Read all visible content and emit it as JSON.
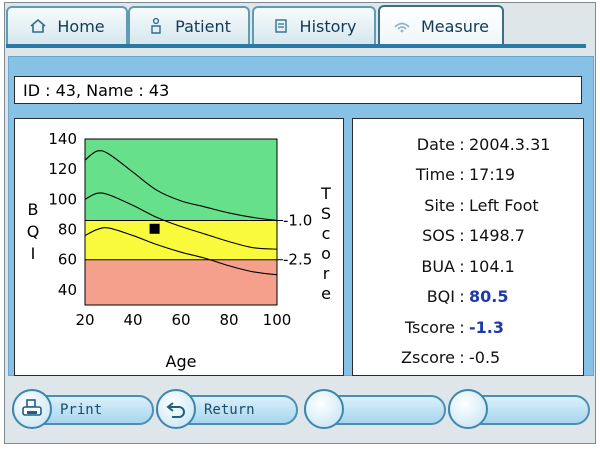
{
  "tabs": [
    {
      "label": "Home",
      "icon": "home-icon",
      "active": false
    },
    {
      "label": "Patient",
      "icon": "patient-icon",
      "active": false
    },
    {
      "label": "History",
      "icon": "history-icon",
      "active": false
    },
    {
      "label": "Measure",
      "icon": "wifi-icon",
      "active": true
    }
  ],
  "id_line": "ID : 43, Name : 43",
  "info": [
    {
      "label": "Date",
      "value": "2004.3.31",
      "highlight": false
    },
    {
      "label": "Time",
      "value": "17:19",
      "highlight": false
    },
    {
      "label": "Site",
      "value": "Left Foot",
      "highlight": false
    },
    {
      "label": "SOS",
      "value": "1498.7",
      "highlight": false
    },
    {
      "label": "BUA",
      "value": "104.1",
      "highlight": false
    },
    {
      "label": "BQI",
      "value": "80.5",
      "highlight": true
    },
    {
      "label": "Tscore",
      "value": "-1.3",
      "highlight": true
    },
    {
      "label": "Zscore",
      "value": "-0.5",
      "highlight": false
    }
  ],
  "buttons": [
    {
      "label": "Print",
      "icon": "printer-icon"
    },
    {
      "label": "Return",
      "icon": "return-arrow-icon"
    },
    {
      "label": "",
      "icon": ""
    },
    {
      "label": "",
      "icon": ""
    }
  ],
  "chart_data": {
    "type": "line",
    "xlabel": "Age",
    "ylabel": "BQI",
    "right_label": "TScore",
    "xlim": [
      20,
      100
    ],
    "ylim": [
      30,
      140
    ],
    "x_ticks": [
      20,
      40,
      60,
      80,
      100
    ],
    "y_ticks": [
      40,
      60,
      80,
      100,
      120,
      140
    ],
    "bands": [
      {
        "from": 86,
        "to": 140,
        "color": "#66e08a"
      },
      {
        "from": 60,
        "to": 86,
        "color": "#fafa3c"
      },
      {
        "from": 30,
        "to": 60,
        "color": "#f4a08c"
      }
    ],
    "threshold_labels": [
      {
        "value": 86,
        "label": "-1.0"
      },
      {
        "value": 60,
        "label": "-2.5"
      }
    ],
    "x": [
      20,
      25,
      30,
      40,
      50,
      60,
      70,
      80,
      90,
      100
    ],
    "series": [
      {
        "values": [
          126,
          132,
          130,
          118,
          106,
          99,
          95,
          91,
          88,
          86
        ]
      },
      {
        "values": [
          100,
          104,
          103,
          96,
          88,
          82,
          77,
          72,
          68,
          67
        ]
      },
      {
        "values": [
          76,
          80,
          81,
          76,
          70,
          65,
          61,
          56,
          52,
          50
        ]
      }
    ],
    "marker": {
      "x": 49,
      "y": 80.5
    }
  }
}
